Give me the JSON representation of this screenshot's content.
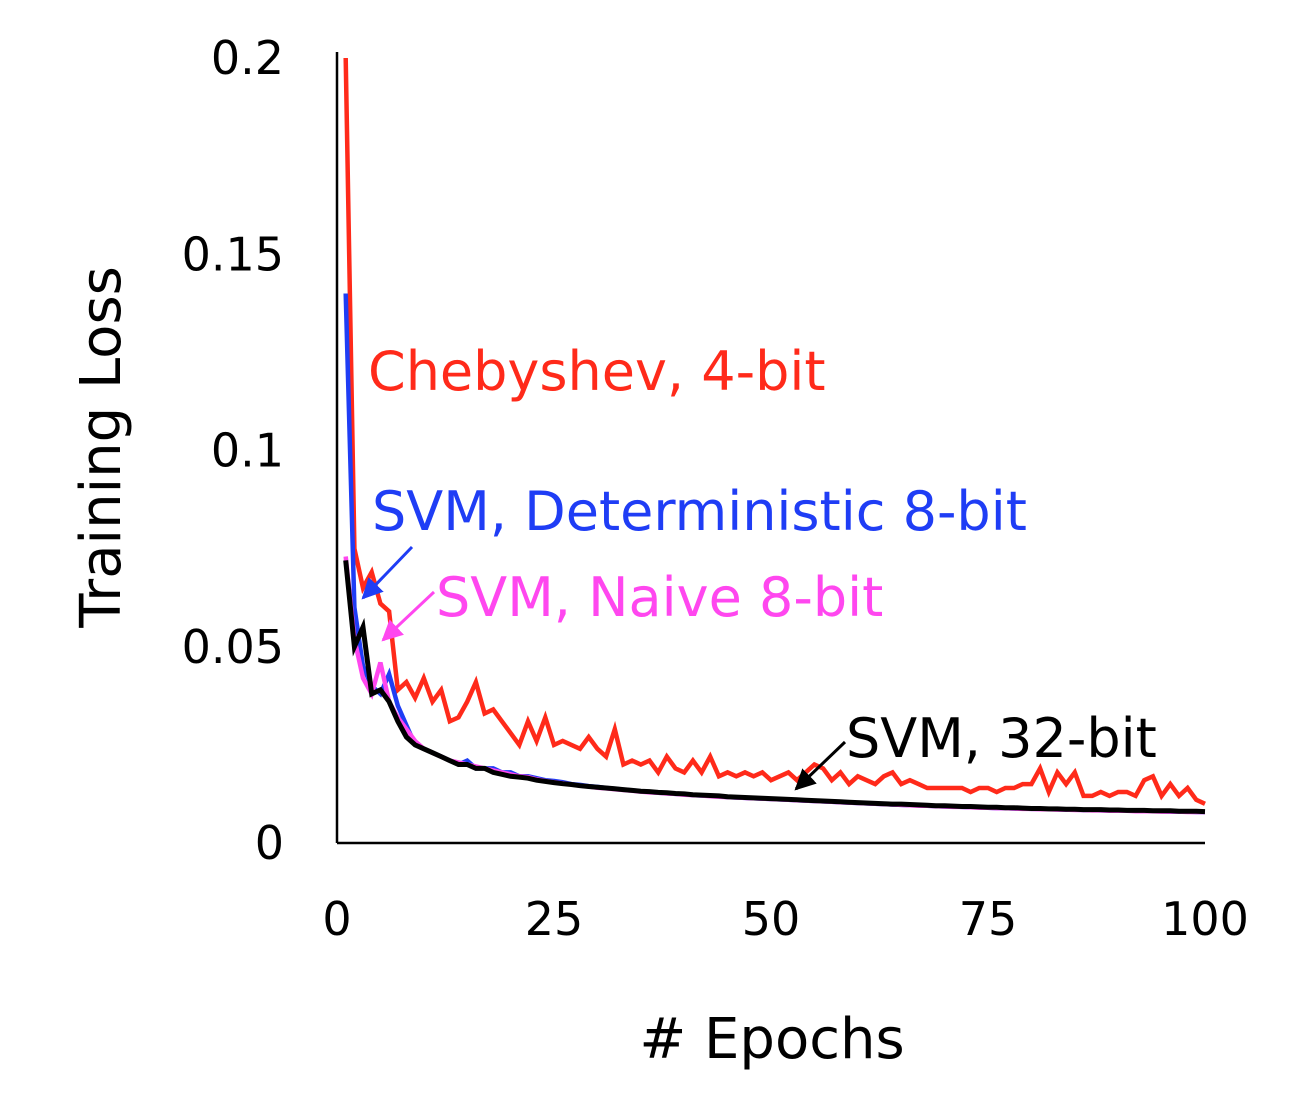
{
  "chart_data": {
    "type": "line",
    "title": "",
    "xlabel": "# Epochs",
    "ylabel": "Training Loss",
    "xlim": [
      0,
      100
    ],
    "ylim": [
      0,
      0.2
    ],
    "xticks": [
      0,
      25,
      50,
      75,
      100
    ],
    "xtick_labels": [
      "0",
      "25",
      "50",
      "75",
      "100"
    ],
    "yticks": [
      0,
      0.05,
      0.1,
      0.15,
      0.2
    ],
    "ytick_labels": [
      "0",
      "0.05",
      "0.1",
      "0.15",
      "0.2"
    ],
    "grid": false,
    "legend": "none",
    "x": [
      1,
      2,
      3,
      4,
      5,
      6,
      7,
      8,
      9,
      10,
      11,
      12,
      13,
      14,
      15,
      16,
      17,
      18,
      19,
      20,
      21,
      22,
      23,
      24,
      25,
      26,
      27,
      28,
      29,
      30,
      31,
      32,
      33,
      34,
      35,
      36,
      37,
      38,
      39,
      40,
      41,
      42,
      43,
      44,
      45,
      46,
      47,
      48,
      49,
      50,
      51,
      52,
      53,
      54,
      55,
      56,
      57,
      58,
      59,
      60,
      61,
      62,
      63,
      64,
      65,
      66,
      67,
      68,
      69,
      70,
      71,
      72,
      73,
      74,
      75,
      76,
      77,
      78,
      79,
      80,
      81,
      82,
      83,
      84,
      85,
      86,
      87,
      88,
      89,
      90,
      91,
      92,
      93,
      94,
      95,
      96,
      97,
      98,
      99,
      100
    ],
    "series": [
      {
        "name": "Chebyshev, 4-bit",
        "color": "#ff2a1a",
        "values": [
          0.2,
          0.075,
          0.065,
          0.069,
          0.061,
          0.059,
          0.039,
          0.041,
          0.037,
          0.042,
          0.036,
          0.039,
          0.031,
          0.032,
          0.036,
          0.041,
          0.033,
          0.034,
          0.031,
          0.028,
          0.025,
          0.031,
          0.026,
          0.032,
          0.025,
          0.026,
          0.025,
          0.024,
          0.027,
          0.024,
          0.022,
          0.029,
          0.02,
          0.021,
          0.02,
          0.021,
          0.018,
          0.022,
          0.019,
          0.018,
          0.021,
          0.018,
          0.022,
          0.017,
          0.018,
          0.017,
          0.018,
          0.017,
          0.018,
          0.016,
          0.017,
          0.018,
          0.016,
          0.018,
          0.02,
          0.019,
          0.016,
          0.018,
          0.015,
          0.017,
          0.016,
          0.015,
          0.017,
          0.018,
          0.015,
          0.016,
          0.015,
          0.014,
          0.014,
          0.014,
          0.014,
          0.014,
          0.013,
          0.014,
          0.014,
          0.013,
          0.014,
          0.014,
          0.015,
          0.015,
          0.019,
          0.013,
          0.018,
          0.015,
          0.018,
          0.012,
          0.012,
          0.013,
          0.012,
          0.013,
          0.013,
          0.012,
          0.016,
          0.017,
          0.012,
          0.015,
          0.012,
          0.014,
          0.011,
          0.01
        ]
      },
      {
        "name": "SVM, Deterministic 8-bit",
        "color": "#1f3df5",
        "values": [
          0.14,
          0.06,
          0.045,
          0.04,
          0.038,
          0.043,
          0.035,
          0.03,
          0.025,
          0.024,
          0.023,
          0.022,
          0.021,
          0.02,
          0.021,
          0.019,
          0.019,
          0.019,
          0.018,
          0.018,
          0.017,
          0.017,
          0.0165,
          0.016,
          0.0158,
          0.0155,
          0.015,
          0.0148,
          0.0145,
          0.0143,
          0.014,
          0.0138,
          0.0136,
          0.0134,
          0.0132,
          0.013,
          0.0128,
          0.0127,
          0.0125,
          0.0124,
          0.0122,
          0.0121,
          0.012,
          0.0119,
          0.0117,
          0.0116,
          0.0115,
          0.0114,
          0.0113,
          0.0112,
          0.0111,
          0.011,
          0.0109,
          0.0108,
          0.0107,
          0.0106,
          0.0105,
          0.0104,
          0.0103,
          0.0102,
          0.0101,
          0.01,
          0.0099,
          0.0098,
          0.0097,
          0.0096,
          0.0096,
          0.0095,
          0.0094,
          0.0093,
          0.0093,
          0.0092,
          0.0091,
          0.0091,
          0.009,
          0.0089,
          0.0089,
          0.0088,
          0.0088,
          0.0087,
          0.0087,
          0.0086,
          0.0086,
          0.0085,
          0.0085,
          0.0084,
          0.0084,
          0.0083,
          0.0083,
          0.0083,
          0.0082,
          0.0082,
          0.0081,
          0.0081,
          0.0081,
          0.008,
          0.008,
          0.008,
          0.0079,
          0.0079
        ]
      },
      {
        "name": "SVM, Naive 8-bit",
        "color": "#ff47ef",
        "values": [
          0.073,
          0.052,
          0.042,
          0.038,
          0.046,
          0.036,
          0.032,
          0.029,
          0.026,
          0.024,
          0.023,
          0.022,
          0.021,
          0.0205,
          0.02,
          0.0195,
          0.019,
          0.0185,
          0.018,
          0.0175,
          0.017,
          0.0168,
          0.0162,
          0.0158,
          0.0155,
          0.0152,
          0.0149,
          0.0146,
          0.0144,
          0.0141,
          0.0139,
          0.0137,
          0.0135,
          0.0133,
          0.0131,
          0.0129,
          0.0128,
          0.0126,
          0.0125,
          0.0123,
          0.0122,
          0.0121,
          0.0119,
          0.0118,
          0.0117,
          0.0116,
          0.0115,
          0.0114,
          0.0113,
          0.0112,
          0.0111,
          0.011,
          0.0109,
          0.0108,
          0.0107,
          0.0106,
          0.0105,
          0.0104,
          0.0103,
          0.0102,
          0.0101,
          0.01,
          0.0099,
          0.0098,
          0.0097,
          0.0096,
          0.0095,
          0.0095,
          0.0094,
          0.0093,
          0.0092,
          0.0092,
          0.0091,
          0.009,
          0.009,
          0.0089,
          0.0089,
          0.0088,
          0.0087,
          0.0087,
          0.0086,
          0.0086,
          0.0085,
          0.0085,
          0.0084,
          0.0084,
          0.0083,
          0.0083,
          0.0082,
          0.0082,
          0.0082,
          0.0081,
          0.0081,
          0.0081,
          0.008,
          0.008,
          0.008,
          0.0079,
          0.0079,
          0.0079
        ]
      },
      {
        "name": "SVM, 32-bit",
        "color": "#000000",
        "values": [
          0.072,
          0.05,
          0.055,
          0.038,
          0.039,
          0.036,
          0.031,
          0.027,
          0.025,
          0.024,
          0.023,
          0.022,
          0.021,
          0.02,
          0.02,
          0.019,
          0.019,
          0.018,
          0.0175,
          0.017,
          0.0168,
          0.0165,
          0.016,
          0.0157,
          0.0154,
          0.0151,
          0.0149,
          0.0146,
          0.0144,
          0.0142,
          0.014,
          0.0138,
          0.0136,
          0.0134,
          0.0132,
          0.0131,
          0.0129,
          0.0128,
          0.0126,
          0.0125,
          0.0123,
          0.0122,
          0.0121,
          0.012,
          0.0118,
          0.0117,
          0.0116,
          0.0115,
          0.0114,
          0.0113,
          0.0112,
          0.0111,
          0.011,
          0.0109,
          0.0108,
          0.0107,
          0.0106,
          0.0105,
          0.0104,
          0.0103,
          0.0102,
          0.0101,
          0.01,
          0.0099,
          0.0099,
          0.0098,
          0.0097,
          0.0096,
          0.0095,
          0.0095,
          0.0094,
          0.0093,
          0.0093,
          0.0092,
          0.0091,
          0.0091,
          0.009,
          0.009,
          0.0089,
          0.0088,
          0.0088,
          0.0087,
          0.0087,
          0.0086,
          0.0086,
          0.0085,
          0.0085,
          0.0085,
          0.0084,
          0.0084,
          0.0083,
          0.0083,
          0.0083,
          0.0082,
          0.0082,
          0.0082,
          0.0081,
          0.0081,
          0.0081,
          0.008
        ]
      }
    ],
    "annotations": [
      {
        "text": "Chebyshev, 4-bit",
        "color": "#ff2a1a",
        "arrow": false
      },
      {
        "text": "SVM, Deterministic 8-bit",
        "color": "#1f3df5",
        "arrow": true,
        "points_to_x": 3
      },
      {
        "text": "SVM, Naive 8-bit",
        "color": "#ff47ef",
        "arrow": true,
        "points_to_x": 5
      },
      {
        "text": "SVM, 32-bit",
        "color": "#000000",
        "arrow": true,
        "points_to_x": 52
      }
    ]
  }
}
